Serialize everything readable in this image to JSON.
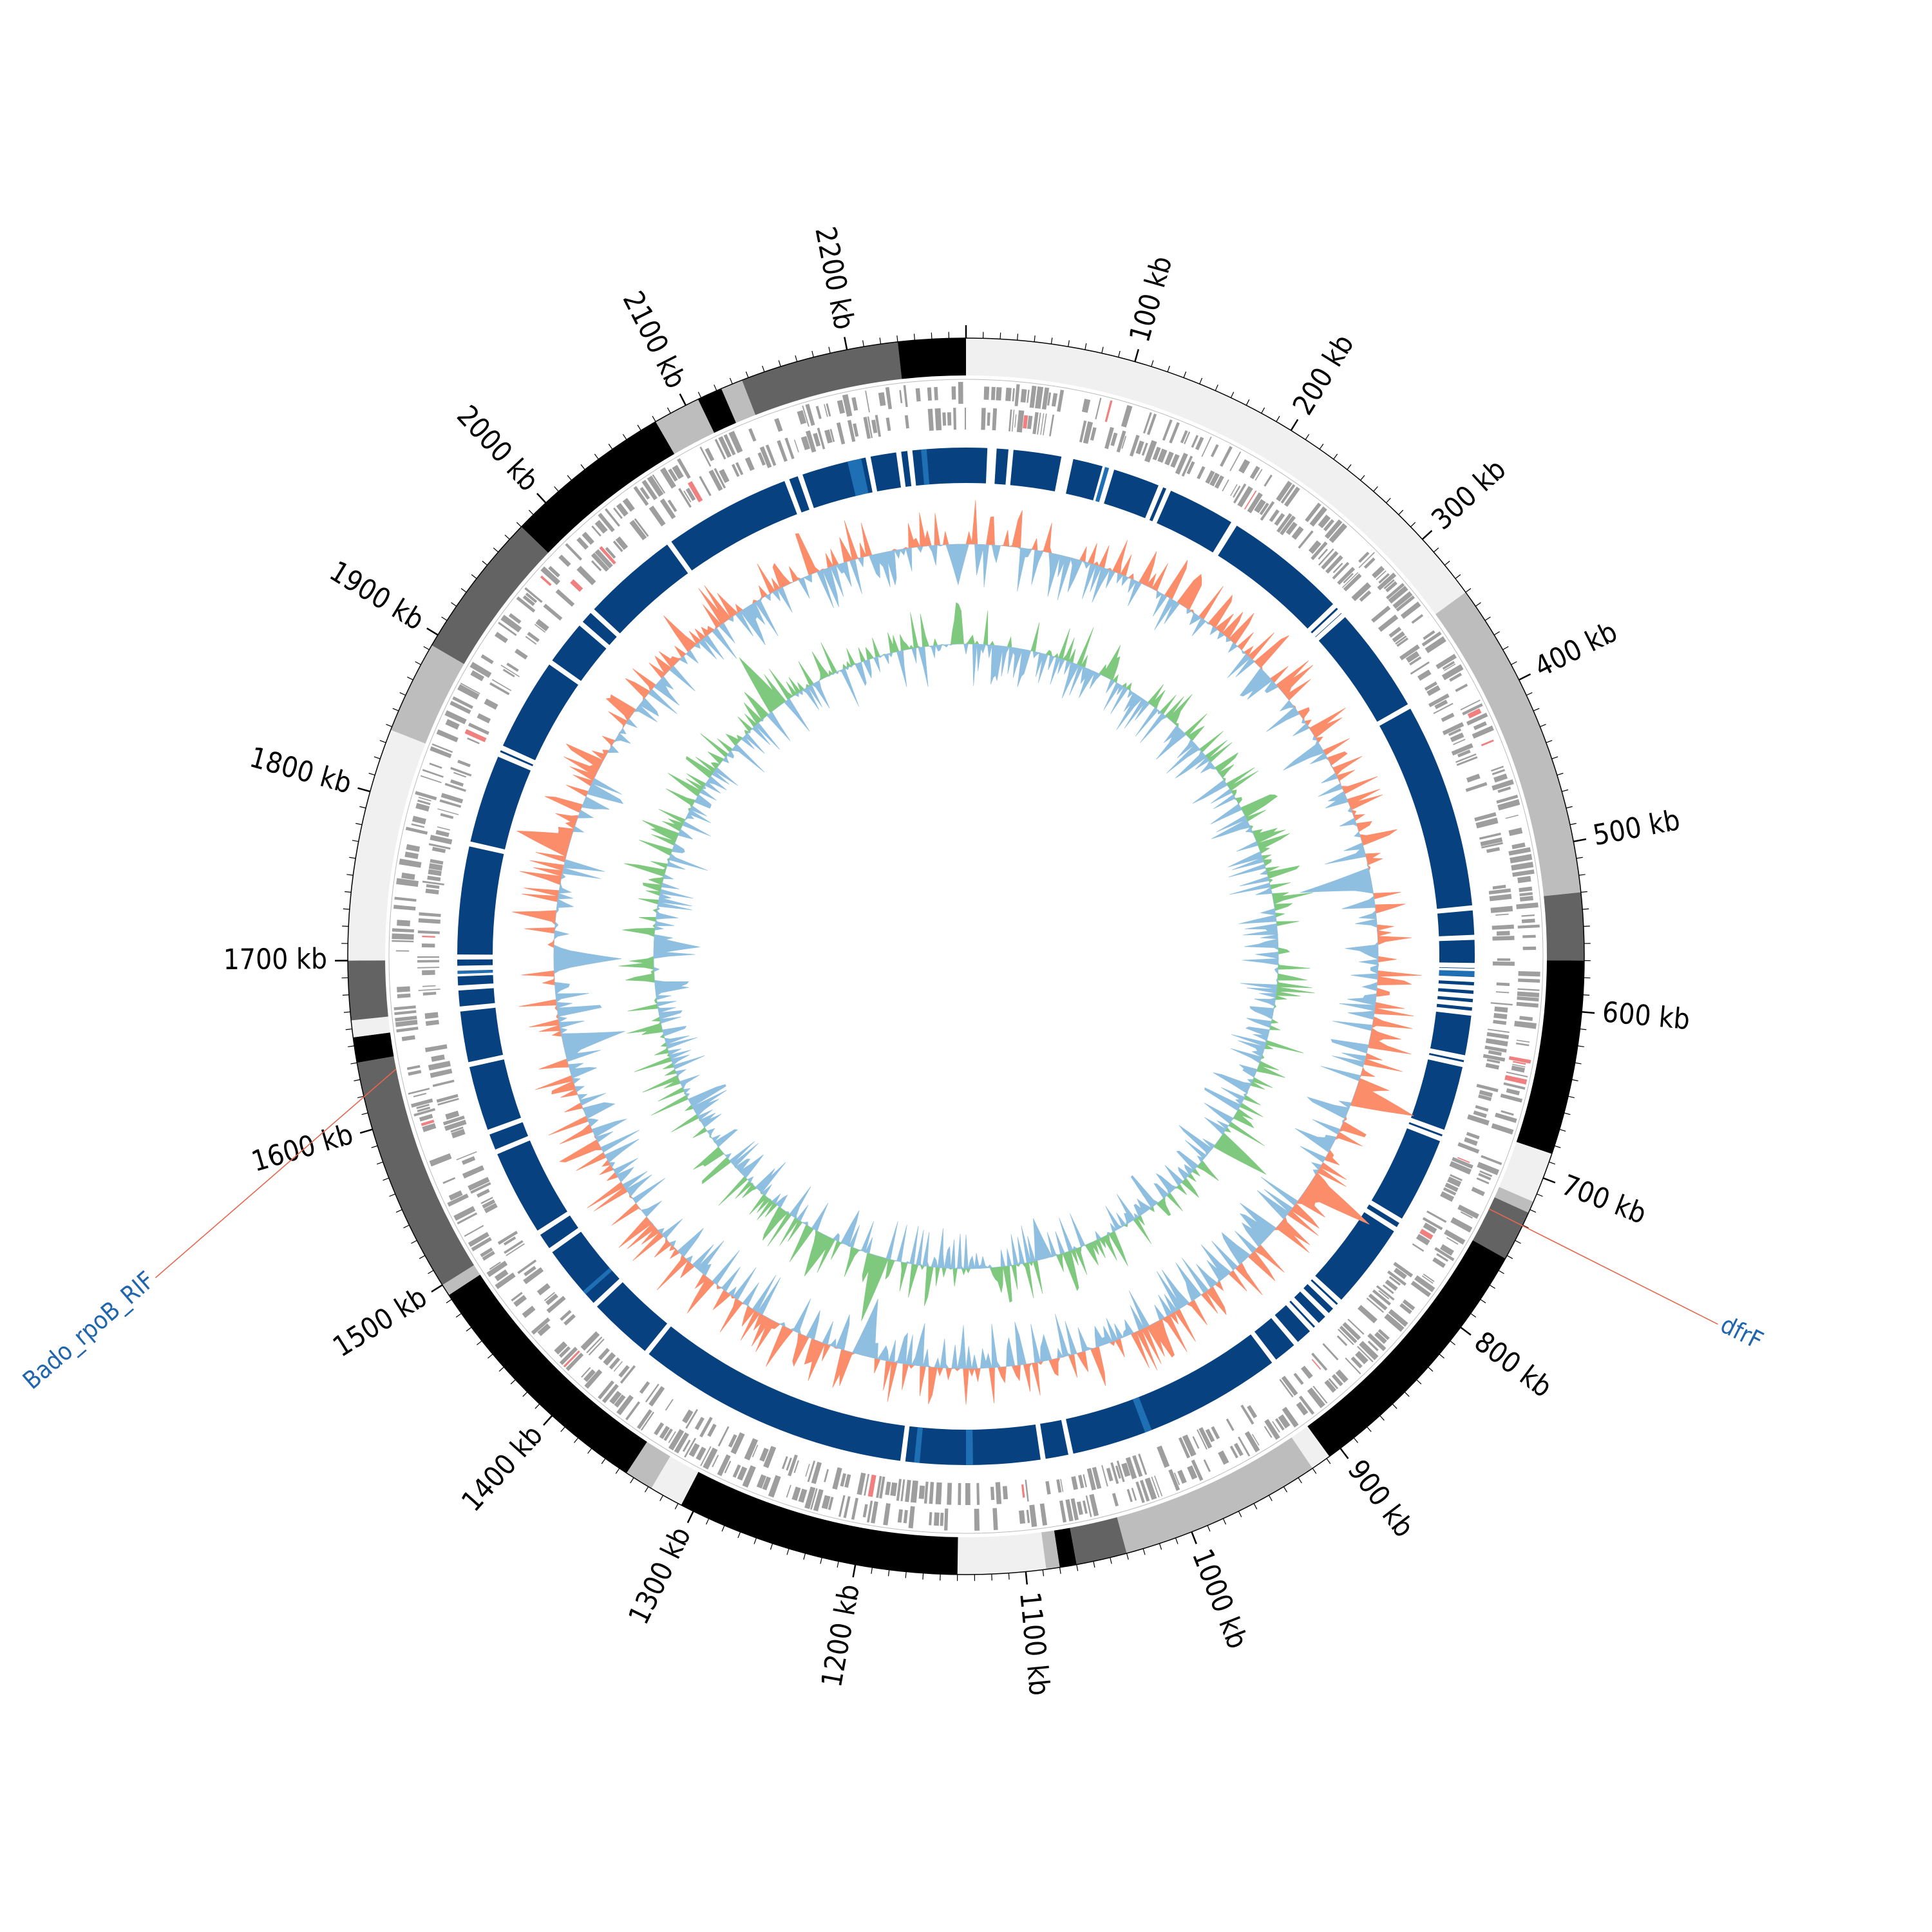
{
  "genome": {
    "length_kb": 2270,
    "tick_unit": "kb",
    "major_tick_step_kb": 100,
    "minor_tick_step_kb": 10
  },
  "ticks": [
    "100 kb",
    "200 kb",
    "300 kb",
    "400 kb",
    "500 kb",
    "600 kb",
    "700 kb",
    "800 kb",
    "900 kb",
    "1000 kb",
    "1100 kb",
    "1200 kb",
    "1300 kb",
    "1400 kb",
    "1500 kb",
    "1600 kb",
    "1700 kb",
    "1800 kb",
    "1900 kb",
    "2000 kb",
    "2100 kb",
    "2200 kb"
  ],
  "contigs": [
    {
      "start": 0,
      "end": 340,
      "color": "#f0f0f0"
    },
    {
      "start": 340,
      "end": 530,
      "color": "#bdbdbd"
    },
    {
      "start": 530,
      "end": 570,
      "color": "#636363"
    },
    {
      "start": 570,
      "end": 685,
      "color": "#000000"
    },
    {
      "start": 685,
      "end": 715,
      "color": "#f0f0f0"
    },
    {
      "start": 715,
      "end": 722,
      "color": "#bdbdbd"
    },
    {
      "start": 722,
      "end": 752,
      "color": "#636363"
    },
    {
      "start": 752,
      "end": 908,
      "color": "#000000"
    },
    {
      "start": 908,
      "end": 920,
      "color": "#f0f0f0"
    },
    {
      "start": 920,
      "end": 1040,
      "color": "#bdbdbd"
    },
    {
      "start": 1040,
      "end": 1070,
      "color": "#636363"
    },
    {
      "start": 1070,
      "end": 1080,
      "color": "#000000"
    },
    {
      "start": 1080,
      "end": 1088,
      "color": "#bdbdbd"
    },
    {
      "start": 1088,
      "end": 1140,
      "color": "#f0f0f0"
    },
    {
      "start": 1140,
      "end": 1308,
      "color": "#000000"
    },
    {
      "start": 1308,
      "end": 1328,
      "color": "#f0f0f0"
    },
    {
      "start": 1328,
      "end": 1345,
      "color": "#bdbdbd"
    },
    {
      "start": 1345,
      "end": 1493,
      "color": "#000000"
    },
    {
      "start": 1493,
      "end": 1500,
      "color": "#bdbdbd"
    },
    {
      "start": 1500,
      "end": 1640,
      "color": "#636363"
    },
    {
      "start": 1640,
      "end": 1655,
      "color": "#000000"
    },
    {
      "start": 1655,
      "end": 1665,
      "color": "#f0f0f0"
    },
    {
      "start": 1665,
      "end": 1700,
      "color": "#636363"
    },
    {
      "start": 1700,
      "end": 1838,
      "color": "#f0f0f0"
    },
    {
      "start": 1838,
      "end": 1893,
      "color": "#bdbdbd"
    },
    {
      "start": 1893,
      "end": 1980,
      "color": "#636363"
    },
    {
      "start": 1980,
      "end": 2080,
      "color": "#000000"
    },
    {
      "start": 2080,
      "end": 2108,
      "color": "#bdbdbd"
    },
    {
      "start": 2108,
      "end": 2123,
      "color": "#000000"
    },
    {
      "start": 2123,
      "end": 2136,
      "color": "#bdbdbd"
    },
    {
      "start": 2136,
      "end": 2230,
      "color": "#636363"
    },
    {
      "start": 2230,
      "end": 2270,
      "color": "#000000"
    }
  ],
  "blast_gaps_kb": [
    17,
    20,
    32,
    70,
    72,
    75,
    100,
    103,
    104,
    105,
    142,
    148,
    200,
    201,
    293,
    298,
    302,
    382,
    533,
    554,
    574,
    578,
    584,
    590,
    596,
    602,
    608,
    640,
    645,
    695,
    700,
    765,
    772,
    837,
    842,
    850,
    860,
    865,
    880,
    900,
    1060,
    1080,
    1180,
    1380,
    1430,
    1480,
    1495,
    1560,
    1575,
    1625,
    1665,
    1680,
    1690,
    1694,
    1702,
    1783,
    1850,
    1855,
    1925,
    1960,
    1972,
    2045,
    2140,
    2150,
    2192,
    2200,
    2222,
    2230
  ],
  "annotations": [
    {
      "label": "dfrF",
      "position_kb": 730,
      "side": "right"
    },
    {
      "label": "Bado_rpoB_RIF",
      "position_kb": 1632,
      "side": "left"
    }
  ],
  "colors": {
    "contig_shades": [
      "#f0f0f0",
      "#bdbdbd",
      "#636363",
      "#000000"
    ],
    "cds": "#9e9e9e",
    "rna": "#f08080",
    "blast": "#08417f",
    "blast_highlight": "#1f6fb4",
    "gc_content_high": "#fc8d6b",
    "gc_content_low": "#8fbfe0",
    "gc_skew_pos": "#7fc97f",
    "gc_skew_neg": "#8fbfe0",
    "annotation_line": "#e8664f",
    "annotation_text": "#2166ac"
  }
}
